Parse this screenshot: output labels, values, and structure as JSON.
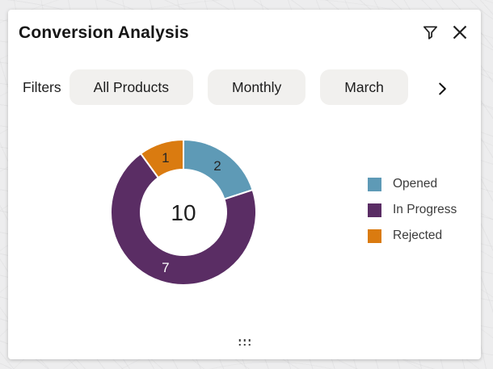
{
  "header": {
    "title": "Conversion Analysis",
    "filter_icon": "funnel",
    "close_icon": "x"
  },
  "filters": {
    "label": "Filters",
    "pills": [
      "All Products",
      "Monthly",
      "March"
    ],
    "more_icon": "chevron-right"
  },
  "chart_data": {
    "type": "pie",
    "donut": true,
    "title": "Conversion Analysis",
    "categories": [
      "Opened",
      "In Progress",
      "Rejected"
    ],
    "values": [
      2,
      7,
      1
    ],
    "total": 10,
    "center_label": "10",
    "colors": [
      "#5E9AB6",
      "#5A2D64",
      "#DA7B10"
    ],
    "slice_label_colors": [
      "#262626",
      "#FFFFFF",
      "#262626"
    ],
    "legend_position": "right",
    "start_angle_deg": 0,
    "direction": "clockwise"
  }
}
